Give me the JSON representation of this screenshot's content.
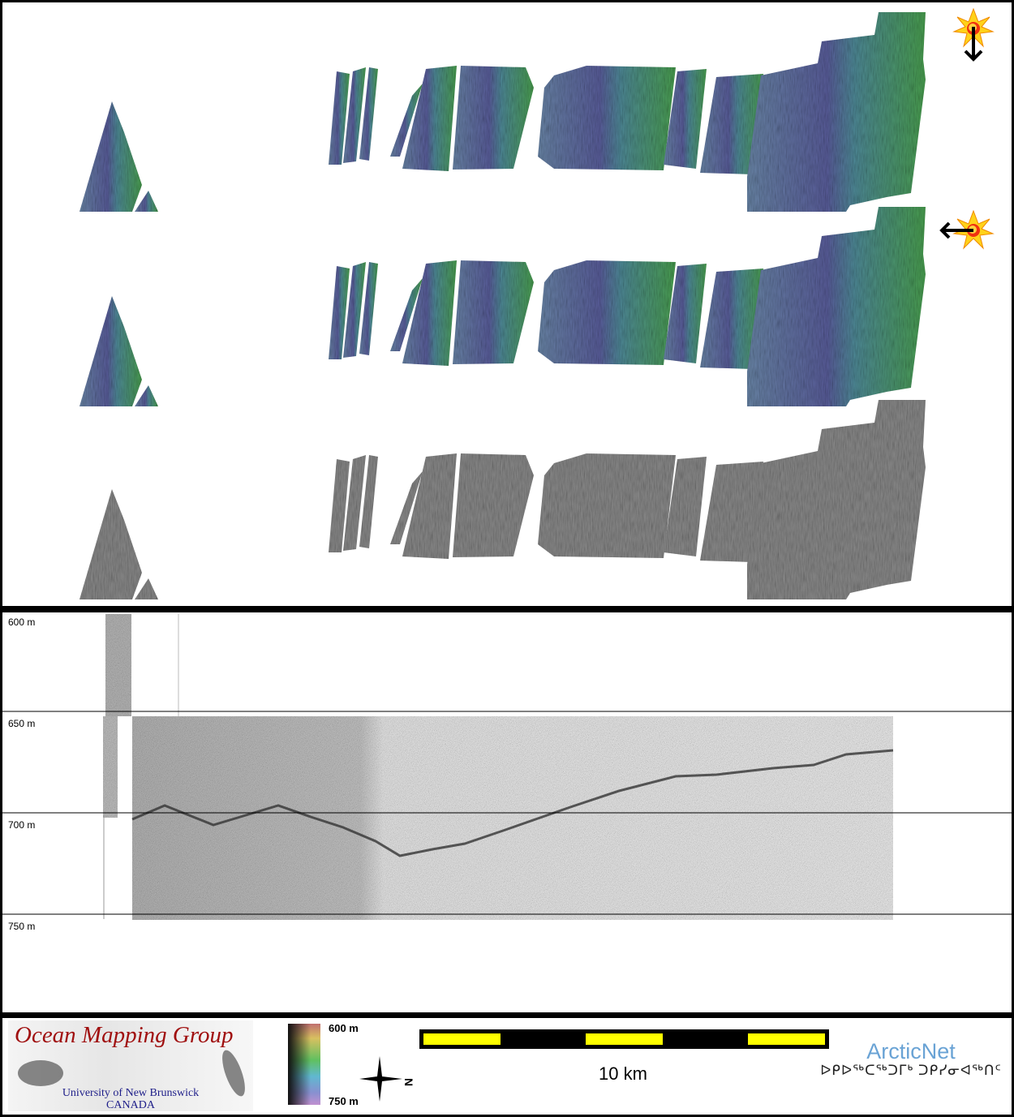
{
  "maps": {
    "rows": [
      {
        "style": "sun-illuminated colour bathymetry",
        "sun_direction": "north"
      },
      {
        "style": "sun-illuminated colour bathymetry",
        "sun_direction": "east"
      },
      {
        "style": "backscatter greyscale"
      }
    ],
    "icons": [
      "sun-icon",
      "arrow-down-icon",
      "arrow-left-icon"
    ],
    "colors": {
      "shallow": "#3f9a55",
      "deep": "#5a64a0"
    }
  },
  "profile": {
    "depth_ticks": [
      "600 m",
      "650 m",
      "700 m",
      "750 m"
    ]
  },
  "footer": {
    "logo": {
      "title": "Ocean Mapping Group",
      "line1": "University of New Brunswick",
      "line2": "CANADA"
    },
    "legend": {
      "top": "600 m",
      "bottom": "750 m"
    },
    "north_label": "N",
    "scale_label": "10 km",
    "partner": {
      "name": "ArcticNet",
      "inuktitut": "ᐅᑭᐅᖅᑕᖅᑐᒥᒃ ᑐᑭᓯᓂᐊᖅᑎᑦ"
    }
  }
}
